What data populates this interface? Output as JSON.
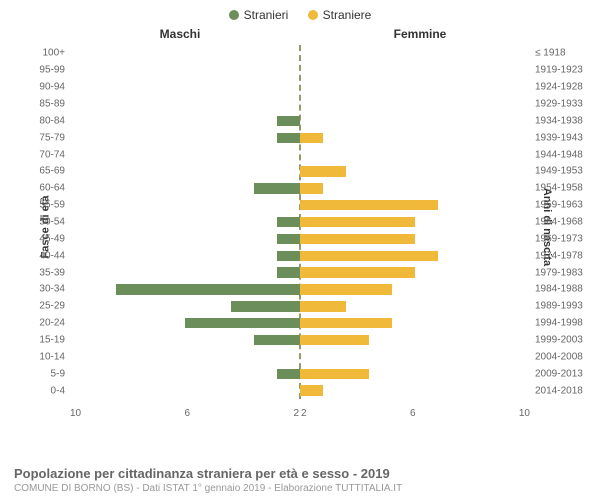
{
  "legend": {
    "male": {
      "label": "Stranieri",
      "color": "#6b8e5a"
    },
    "female": {
      "label": "Straniere",
      "color": "#f0b93a"
    }
  },
  "headers": {
    "left": "Maschi",
    "right": "Femmine"
  },
  "axis_titles": {
    "left": "Fasce di età",
    "right": "Anni di nascita"
  },
  "footer": {
    "title": "Popolazione per cittadinanza straniera per età e sesso - 2019",
    "subtitle": "COMUNE DI BORNO (BS) - Dati ISTAT 1° gennaio 2019 - Elaborazione TUTTITALIA.IT"
  },
  "xaxis": {
    "max": 10,
    "ticks_left": [
      "10",
      "6",
      "2"
    ],
    "ticks_right": [
      "2",
      "6",
      "10"
    ]
  },
  "styling": {
    "centerline_color": "#999966",
    "grid_color": "#e0e0e0",
    "bg": "#ffffff",
    "font_family": "Arial",
    "label_fontsize": 10,
    "header_fontsize": 12
  },
  "rows": [
    {
      "age": "100+",
      "birth": "≤ 1918",
      "m": 0,
      "f": 0
    },
    {
      "age": "95-99",
      "birth": "1919-1923",
      "m": 0,
      "f": 0
    },
    {
      "age": "90-94",
      "birth": "1924-1928",
      "m": 0,
      "f": 0
    },
    {
      "age": "85-89",
      "birth": "1929-1933",
      "m": 0,
      "f": 0
    },
    {
      "age": "80-84",
      "birth": "1934-1938",
      "m": 1,
      "f": 0
    },
    {
      "age": "75-79",
      "birth": "1939-1943",
      "m": 1,
      "f": 1
    },
    {
      "age": "70-74",
      "birth": "1944-1948",
      "m": 0,
      "f": 0
    },
    {
      "age": "65-69",
      "birth": "1949-1953",
      "m": 0,
      "f": 2
    },
    {
      "age": "60-64",
      "birth": "1954-1958",
      "m": 2,
      "f": 1
    },
    {
      "age": "55-59",
      "birth": "1959-1963",
      "m": 0,
      "f": 6
    },
    {
      "age": "50-54",
      "birth": "1964-1968",
      "m": 1,
      "f": 5
    },
    {
      "age": "45-49",
      "birth": "1969-1973",
      "m": 1,
      "f": 5
    },
    {
      "age": "40-44",
      "birth": "1974-1978",
      "m": 1,
      "f": 6
    },
    {
      "age": "35-39",
      "birth": "1979-1983",
      "m": 1,
      "f": 5
    },
    {
      "age": "30-34",
      "birth": "1984-1988",
      "m": 8,
      "f": 4
    },
    {
      "age": "25-29",
      "birth": "1989-1993",
      "m": 3,
      "f": 2
    },
    {
      "age": "20-24",
      "birth": "1994-1998",
      "m": 5,
      "f": 4
    },
    {
      "age": "15-19",
      "birth": "1999-2003",
      "m": 2,
      "f": 3
    },
    {
      "age": "10-14",
      "birth": "2004-2008",
      "m": 0,
      "f": 0
    },
    {
      "age": "5-9",
      "birth": "2009-2013",
      "m": 1,
      "f": 3
    },
    {
      "age": "0-4",
      "birth": "2014-2018",
      "m": 0,
      "f": 1
    }
  ]
}
